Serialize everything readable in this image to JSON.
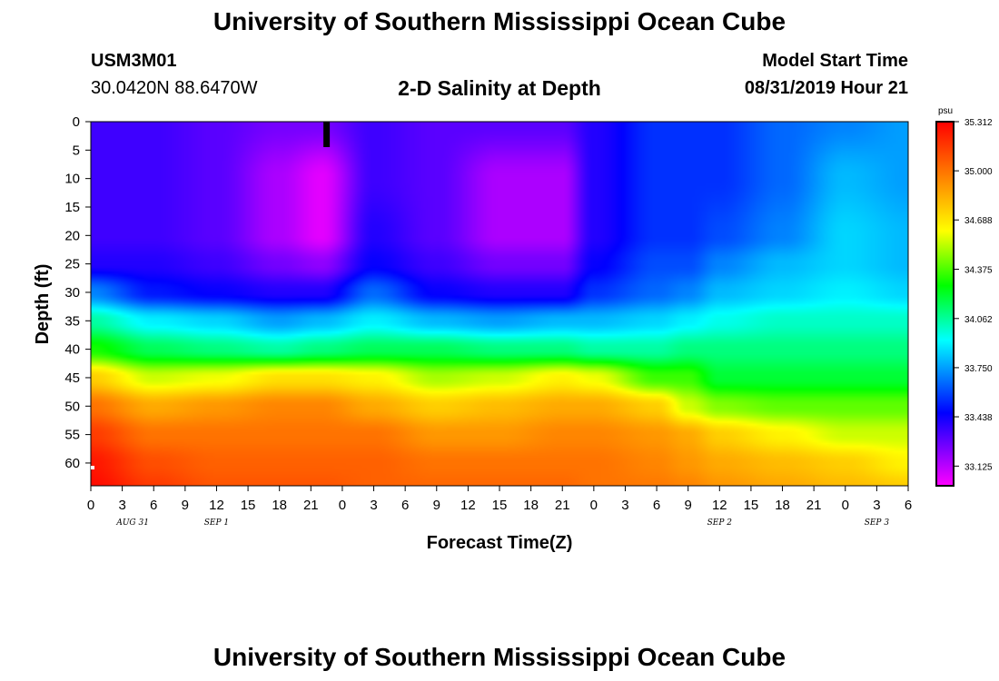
{
  "header": {
    "title": "University of Southern Mississippi Ocean Cube",
    "station_id": "USM3M01",
    "station_coords": "30.0420N 88.6470W",
    "chart_title": "2-D Salinity at Depth",
    "start_label": "Model Start Time",
    "start_value": "08/31/2019 Hour 21"
  },
  "footer": {
    "title": "University of Southern Mississippi Ocean Cube"
  },
  "chart_data": {
    "type": "heatmap",
    "title": "2-D Salinity at Depth",
    "xlabel": "Forecast Time(Z)",
    "ylabel": "Depth (ft)",
    "x_ticks": [
      "0",
      "3",
      "6",
      "9",
      "12",
      "15",
      "18",
      "21",
      "0",
      "3",
      "6",
      "9",
      "12",
      "15",
      "18",
      "21",
      "0",
      "3",
      "6",
      "9",
      "12",
      "15",
      "18",
      "21",
      "0",
      "3",
      "6"
    ],
    "x_hours_range": [
      0,
      78
    ],
    "date_labels": [
      {
        "label": "AUG 31",
        "hour": 4
      },
      {
        "label": "SEP 1",
        "hour": 12
      },
      {
        "label": "SEP 2",
        "hour": 60
      },
      {
        "label": "SEP 3",
        "hour": 75
      }
    ],
    "y_ticks": [
      0,
      5,
      10,
      15,
      20,
      25,
      30,
      35,
      40,
      45,
      50,
      55,
      60
    ],
    "ylim": [
      0,
      64
    ],
    "colorbar": {
      "unit": "psu",
      "labels": [
        "35.312",
        "35.000",
        "34.688",
        "34.375",
        "34.062",
        "33.750",
        "33.438",
        "33.125"
      ],
      "min": 33.0,
      "max": 35.312
    },
    "current_time_hour": 22.5,
    "salinity_grid": {
      "hours": [
        0,
        6,
        12,
        18,
        22,
        27,
        33,
        39,
        45,
        48,
        54,
        57,
        60,
        66,
        72,
        78
      ],
      "depths": [
        0,
        10,
        20,
        25,
        30,
        35,
        40,
        45,
        50,
        55,
        60,
        64
      ],
      "values": [
        [
          33.35,
          33.35,
          33.3,
          33.25,
          33.25,
          33.35,
          33.3,
          33.3,
          33.3,
          33.4,
          33.55,
          33.55,
          33.55,
          33.65,
          33.7,
          33.75
        ],
        [
          33.35,
          33.35,
          33.3,
          33.15,
          33.05,
          33.35,
          33.3,
          33.15,
          33.15,
          33.4,
          33.55,
          33.55,
          33.55,
          33.65,
          33.8,
          33.75
        ],
        [
          33.35,
          33.35,
          33.3,
          33.15,
          33.05,
          33.4,
          33.3,
          33.15,
          33.15,
          33.4,
          33.55,
          33.55,
          33.6,
          33.7,
          33.85,
          33.8
        ],
        [
          33.4,
          33.4,
          33.35,
          33.25,
          33.2,
          33.45,
          33.35,
          33.25,
          33.25,
          33.45,
          33.6,
          33.6,
          33.7,
          33.8,
          33.85,
          33.8
        ],
        [
          33.7,
          33.5,
          33.45,
          33.4,
          33.4,
          33.65,
          33.45,
          33.4,
          33.4,
          33.55,
          33.65,
          33.7,
          33.8,
          33.85,
          33.9,
          33.85
        ],
        [
          34.05,
          33.9,
          33.85,
          33.75,
          33.8,
          33.9,
          33.8,
          33.75,
          33.8,
          33.8,
          33.85,
          33.9,
          33.95,
          34.0,
          34.0,
          34.0
        ],
        [
          34.3,
          34.15,
          34.1,
          34.05,
          34.1,
          34.15,
          34.15,
          34.1,
          34.1,
          34.05,
          34.05,
          34.1,
          34.1,
          34.1,
          34.1,
          34.1
        ],
        [
          34.75,
          34.55,
          34.6,
          34.7,
          34.7,
          34.65,
          34.5,
          34.55,
          34.65,
          34.6,
          34.35,
          34.35,
          34.2,
          34.2,
          34.2,
          34.2
        ],
        [
          35.0,
          34.85,
          34.9,
          34.95,
          34.95,
          34.85,
          34.75,
          34.8,
          34.85,
          34.85,
          34.75,
          34.55,
          34.45,
          34.4,
          34.4,
          34.4
        ],
        [
          35.15,
          35.0,
          35.0,
          35.0,
          35.0,
          35.0,
          34.9,
          34.9,
          34.95,
          34.95,
          34.9,
          34.85,
          34.75,
          34.65,
          34.55,
          34.55
        ],
        [
          35.25,
          35.1,
          35.05,
          35.05,
          35.05,
          35.05,
          35.0,
          35.0,
          35.0,
          35.0,
          34.95,
          34.9,
          34.85,
          34.8,
          34.75,
          34.65
        ],
        [
          35.28,
          35.15,
          35.08,
          35.08,
          35.08,
          35.05,
          35.03,
          35.03,
          35.03,
          35.0,
          34.98,
          34.95,
          34.9,
          34.85,
          34.8,
          34.75
        ]
      ]
    }
  }
}
